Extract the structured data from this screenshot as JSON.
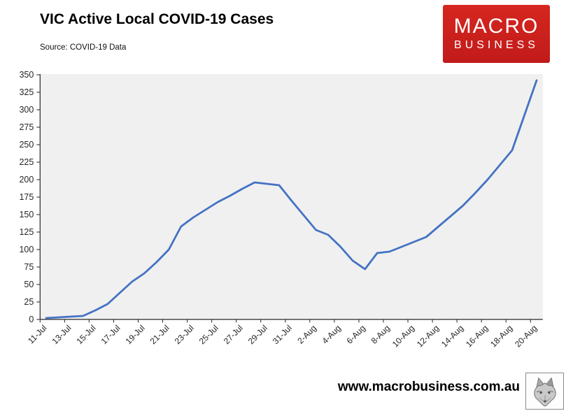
{
  "header": {
    "title": "VIC Active Local COVID-19 Cases",
    "source": "Source: COVID-19 Data"
  },
  "logo": {
    "line1": "MACRO",
    "line2": "BUSINESS",
    "bg_color": "#c92220",
    "text_color": "#ffffff"
  },
  "footer": {
    "url": "www.macrobusiness.com.au"
  },
  "chart_data": {
    "type": "line",
    "title": "VIC Active Local COVID-19 Cases",
    "x": [
      "11-Jul",
      "12-Jul",
      "13-Jul",
      "14-Jul",
      "15-Jul",
      "16-Jul",
      "17-Jul",
      "18-Jul",
      "19-Jul",
      "20-Jul",
      "21-Jul",
      "22-Jul",
      "23-Jul",
      "24-Jul",
      "25-Jul",
      "26-Jul",
      "27-Jul",
      "28-Jul",
      "29-Jul",
      "30-Jul",
      "31-Jul",
      "1-Aug",
      "2-Aug",
      "3-Aug",
      "4-Aug",
      "5-Aug",
      "6-Aug",
      "7-Aug",
      "8-Aug",
      "9-Aug",
      "10-Aug",
      "11-Aug",
      "12-Aug",
      "13-Aug",
      "14-Aug",
      "15-Aug",
      "16-Aug",
      "17-Aug",
      "18-Aug",
      "19-Aug",
      "20-Aug"
    ],
    "values": [
      2,
      3,
      4,
      5,
      13,
      22,
      38,
      54,
      66,
      82,
      100,
      133,
      146,
      157,
      168,
      177,
      187,
      196,
      194,
      192,
      170,
      149,
      128,
      121,
      104,
      84,
      72,
      95,
      97,
      104,
      111,
      118,
      133,
      148,
      163,
      181,
      200,
      221,
      242,
      292,
      342
    ],
    "xtick_labels": [
      "11-Jul",
      "13-Jul",
      "15-Jul",
      "17-Jul",
      "19-Jul",
      "21-Jul",
      "23-Jul",
      "25-Jul",
      "27-Jul",
      "29-Jul",
      "31-Jul",
      "2-Aug",
      "4-Aug",
      "6-Aug",
      "8-Aug",
      "10-Aug",
      "12-Aug",
      "14-Aug",
      "16-Aug",
      "18-Aug",
      "20-Aug"
    ],
    "ylim": [
      0,
      350
    ],
    "ytick_step": 25,
    "series_color": "#4472C4",
    "plot_bg": "#f0f0f0",
    "axis_color": "#262626",
    "grid": false,
    "legend": "none"
  }
}
